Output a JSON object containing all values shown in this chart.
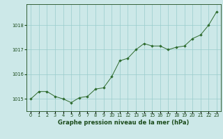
{
  "x": [
    0,
    1,
    2,
    3,
    4,
    5,
    6,
    7,
    8,
    9,
    10,
    11,
    12,
    13,
    14,
    15,
    16,
    17,
    18,
    19,
    20,
    21,
    22,
    23
  ],
  "y": [
    1015.0,
    1015.3,
    1015.3,
    1015.1,
    1015.0,
    1014.85,
    1015.05,
    1015.1,
    1015.4,
    1015.45,
    1015.9,
    1016.55,
    1016.65,
    1017.0,
    1017.25,
    1017.15,
    1017.15,
    1017.0,
    1017.1,
    1017.15,
    1017.45,
    1017.6,
    1018.0,
    1018.55
  ],
  "line_color": "#2d6a2d",
  "marker_color": "#2d6a2d",
  "bg_color": "#cce8e8",
  "grid_color": "#99cccc",
  "title": "Graphe pression niveau de la mer (hPa)",
  "title_color": "#1a4a1a",
  "yticks": [
    1015,
    1016,
    1017,
    1018
  ],
  "ylim": [
    1014.5,
    1018.85
  ],
  "xlim": [
    -0.5,
    23.5
  ],
  "xtick_labels": [
    "0",
    "1",
    "2",
    "3",
    "4",
    "5",
    "6",
    "7",
    "8",
    "9",
    "10",
    "11",
    "12",
    "13",
    "14",
    "15",
    "16",
    "17",
    "18",
    "19",
    "20",
    "21",
    "22",
    "23"
  ],
  "tick_color": "#1a4a1a",
  "tick_fontsize": 4.8,
  "title_fontsize": 6.0
}
